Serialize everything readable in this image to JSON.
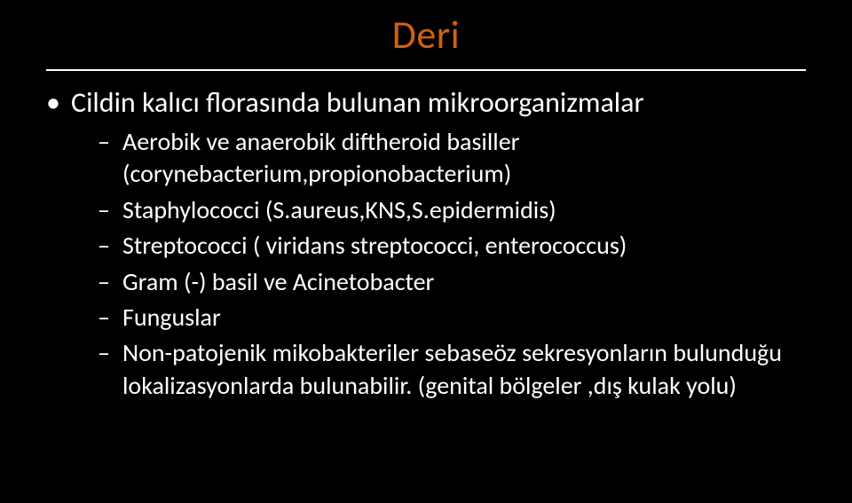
{
  "title": "Deri",
  "colors": {
    "background": "#000000",
    "title_color": "#d2600f",
    "text_color": "#ffffff",
    "rule_color": "#ffffff"
  },
  "typography": {
    "title_fontsize": 44,
    "level1_fontsize": 32,
    "level2_fontsize": 28,
    "font_family": "Calibri"
  },
  "bullets": {
    "level1_marker": "•",
    "level2_marker": "–"
  },
  "content": {
    "main": "Cildin kalıcı florasında bulunan mikroorganizmalar",
    "items": [
      "Aerobik ve anaerobik diftheroid basiller (corynebacterium,propionobacterium)",
      "Staphylococci (S.aureus,KNS,S.epidermidis)",
      "Streptococci ( viridans streptococci, enterococcus)",
      "Gram (-) basil ve Acinetobacter",
      "Funguslar",
      "Non-patojenik mikobakteriler  sebaseöz sekresyonların bulunduğu lokalizasyonlarda bulunabilir. (genital bölgeler ,dış kulak yolu)"
    ]
  }
}
